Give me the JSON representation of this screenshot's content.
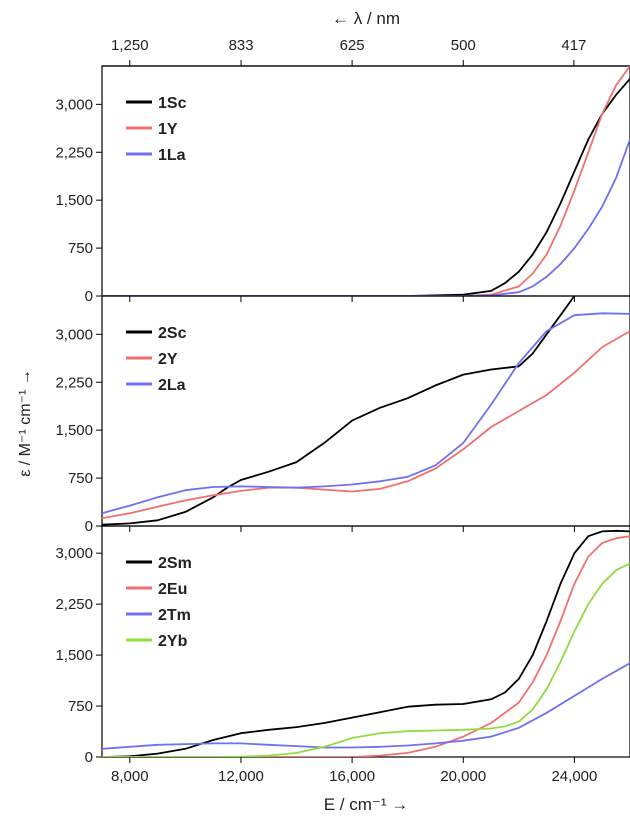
{
  "top_axis_label": "← λ / nm",
  "top_axis_ticks": [
    "1,250",
    "833",
    "625",
    "500",
    "417"
  ],
  "x_axis_label": "E / cm⁻¹ →",
  "y_axis_label": "ε / M⁻¹ cm⁻¹ →",
  "colors": {
    "black": "#000000",
    "red": "#f07070",
    "blue": "#7070f0",
    "green": "#90dd40"
  },
  "chart_data": [
    {
      "type": "line",
      "xlim": [
        7000,
        26000
      ],
      "ylim": [
        0,
        3600
      ],
      "x_ticks": [
        8000,
        12000,
        16000,
        20000,
        24000
      ],
      "x_tick_labels": [
        "8,000",
        "12,000",
        "16,000",
        "20,000",
        "24,000"
      ],
      "y_ticks": [
        0,
        750,
        1500,
        2250,
        3000
      ],
      "y_tick_labels": [
        "0",
        "750",
        "1,500",
        "2,250",
        "3,000"
      ],
      "legend_position": "top-left",
      "series": [
        {
          "name": "1Sc",
          "color": "#000000",
          "x": [
            7000,
            18000,
            20000,
            21000,
            21500,
            22000,
            22500,
            23000,
            23500,
            24000,
            24500,
            25000,
            25500,
            26000
          ],
          "y": [
            0,
            0,
            20,
            80,
            200,
            380,
            650,
            1000,
            1450,
            1950,
            2450,
            2850,
            3150,
            3400
          ]
        },
        {
          "name": "1Y",
          "color": "#f07070",
          "x": [
            7000,
            20000,
            21000,
            22000,
            22500,
            23000,
            23500,
            24000,
            24500,
            25000,
            25500,
            26000
          ],
          "y": [
            0,
            0,
            20,
            150,
            350,
            650,
            1100,
            1650,
            2250,
            2850,
            3300,
            3600
          ]
        },
        {
          "name": "1La",
          "color": "#7070f0",
          "x": [
            7000,
            20000,
            21000,
            22000,
            22500,
            23000,
            23500,
            24000,
            24500,
            25000,
            25500,
            26000
          ],
          "y": [
            0,
            0,
            10,
            60,
            150,
            300,
            500,
            750,
            1050,
            1400,
            1850,
            2450
          ]
        }
      ]
    },
    {
      "type": "line",
      "xlim": [
        7000,
        26000
      ],
      "ylim": [
        0,
        3600
      ],
      "x_ticks": [
        8000,
        12000,
        16000,
        20000,
        24000
      ],
      "x_tick_labels": [
        "8,000",
        "12,000",
        "16,000",
        "20,000",
        "24,000"
      ],
      "y_ticks": [
        0,
        750,
        1500,
        2250,
        3000
      ],
      "y_tick_labels": [
        "0",
        "750",
        "1,500",
        "2,250",
        "3,000"
      ],
      "legend_position": "top-left",
      "series": [
        {
          "name": "2Sc",
          "color": "#000000",
          "x": [
            7000,
            8000,
            9000,
            10000,
            11000,
            11500,
            12000,
            13000,
            14000,
            15000,
            16000,
            17000,
            18000,
            19000,
            20000,
            21000,
            22000,
            22500,
            23000,
            23500,
            24000
          ],
          "y": [
            20,
            40,
            90,
            220,
            450,
            600,
            720,
            850,
            1000,
            1300,
            1650,
            1850,
            2000,
            2200,
            2370,
            2450,
            2500,
            2700,
            3000,
            3300,
            3600
          ]
        },
        {
          "name": "2Y",
          "color": "#f07070",
          "x": [
            7000,
            8000,
            9000,
            10000,
            11000,
            12000,
            13000,
            14000,
            15000,
            16000,
            17000,
            18000,
            19000,
            20000,
            21000,
            22000,
            23000,
            24000,
            25000,
            26000
          ],
          "y": [
            120,
            200,
            300,
            400,
            480,
            550,
            600,
            600,
            570,
            540,
            580,
            700,
            900,
            1200,
            1550,
            1800,
            2050,
            2400,
            2800,
            3050
          ]
        },
        {
          "name": "2La",
          "color": "#7070f0",
          "x": [
            7000,
            8000,
            9000,
            10000,
            11000,
            12000,
            13000,
            14000,
            15000,
            16000,
            17000,
            18000,
            19000,
            20000,
            21000,
            22000,
            23000,
            24000,
            25000,
            26000
          ],
          "y": [
            200,
            320,
            450,
            560,
            610,
            620,
            610,
            600,
            620,
            650,
            700,
            770,
            950,
            1300,
            1900,
            2550,
            3050,
            3300,
            3330,
            3320
          ]
        }
      ]
    },
    {
      "type": "line",
      "xlim": [
        7000,
        26000
      ],
      "ylim": [
        0,
        3400
      ],
      "x_ticks": [
        8000,
        12000,
        16000,
        20000,
        24000
      ],
      "x_tick_labels": [
        "8,000",
        "12,000",
        "16,000",
        "20,000",
        "24,000"
      ],
      "y_ticks": [
        0,
        750,
        1500,
        2250,
        3000
      ],
      "y_tick_labels": [
        "0",
        "750",
        "1,500",
        "2,250",
        "3,000"
      ],
      "legend_position": "top-left",
      "series": [
        {
          "name": "2Sm",
          "color": "#000000",
          "x": [
            7000,
            8000,
            9000,
            10000,
            11000,
            12000,
            13000,
            14000,
            15000,
            16000,
            17000,
            18000,
            19000,
            20000,
            21000,
            21500,
            22000,
            22500,
            23000,
            23500,
            24000,
            24500,
            25000,
            25500,
            26000
          ],
          "y": [
            0,
            10,
            50,
            120,
            250,
            350,
            400,
            440,
            500,
            580,
            660,
            740,
            770,
            780,
            850,
            950,
            1150,
            1500,
            2000,
            2550,
            3000,
            3250,
            3320,
            3330,
            3320
          ]
        },
        {
          "name": "2Eu",
          "color": "#f07070",
          "x": [
            7000,
            16000,
            17000,
            18000,
            19000,
            20000,
            21000,
            22000,
            22500,
            23000,
            23500,
            24000,
            24500,
            25000,
            25500,
            26000
          ],
          "y": [
            0,
            0,
            20,
            60,
            150,
            300,
            500,
            800,
            1100,
            1500,
            2000,
            2550,
            2950,
            3150,
            3220,
            3250
          ]
        },
        {
          "name": "2Tm",
          "color": "#7070f0",
          "x": [
            7000,
            8000,
            9000,
            10000,
            11000,
            12000,
            13000,
            14000,
            15000,
            16000,
            17000,
            18000,
            19000,
            20000,
            21000,
            22000,
            23000,
            24000,
            25000,
            26000
          ],
          "y": [
            120,
            150,
            180,
            190,
            200,
            200,
            180,
            160,
            140,
            140,
            150,
            170,
            200,
            240,
            300,
            430,
            650,
            900,
            1150,
            1380
          ]
        },
        {
          "name": "2Yb",
          "color": "#90dd40",
          "x": [
            7000,
            11000,
            12000,
            13000,
            14000,
            15000,
            16000,
            17000,
            18000,
            19000,
            20000,
            21000,
            21500,
            22000,
            22500,
            23000,
            23500,
            24000,
            24500,
            25000,
            25500,
            26000
          ],
          "y": [
            0,
            0,
            5,
            20,
            60,
            150,
            280,
            350,
            380,
            390,
            400,
            420,
            450,
            520,
            700,
            1000,
            1400,
            1850,
            2250,
            2550,
            2750,
            2850
          ]
        }
      ]
    }
  ]
}
